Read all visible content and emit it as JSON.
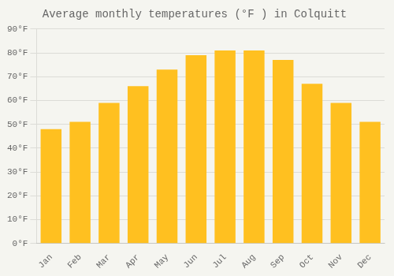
{
  "chart_data": {
    "type": "bar",
    "title": "Average monthly temperatures (°F ) in Colquitt",
    "categories": [
      "Jan",
      "Feb",
      "Mar",
      "Apr",
      "May",
      "Jun",
      "Jul",
      "Aug",
      "Sep",
      "Oct",
      "Nov",
      "Dec"
    ],
    "values": [
      48,
      51,
      59,
      66,
      73,
      79,
      81,
      81,
      77,
      67,
      59,
      51
    ],
    "color": "#FFC020",
    "ylim": [
      0,
      90
    ],
    "yticks": [
      {
        "value": 0,
        "label": "0°F"
      },
      {
        "value": 10,
        "label": "10°F"
      },
      {
        "value": 20,
        "label": "20°F"
      },
      {
        "value": 30,
        "label": "30°F"
      },
      {
        "value": 40,
        "label": "40°F"
      },
      {
        "value": 50,
        "label": "50°F"
      },
      {
        "value": 60,
        "label": "60°F"
      },
      {
        "value": 70,
        "label": "70°F"
      },
      {
        "value": 80,
        "label": "80°F"
      },
      {
        "value": 90,
        "label": "90°F"
      }
    ],
    "grid": true
  }
}
